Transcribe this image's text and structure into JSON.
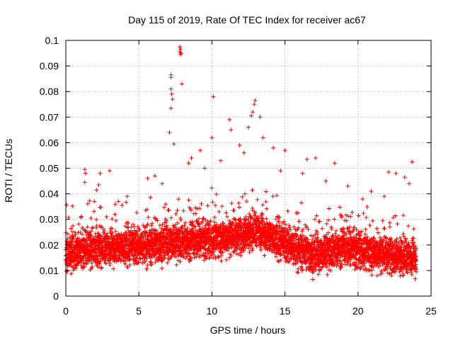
{
  "chart_data": {
    "type": "scatter",
    "title": "Day 115 of 2019, Rate Of TEC Index for receiver ac67",
    "xlabel": "GPS time / hours",
    "ylabel": "ROTI / TECUs",
    "xlim": [
      0,
      25
    ],
    "ylim": [
      0,
      0.1
    ],
    "grid": true,
    "marker": "+",
    "color": "#ff0000",
    "xticks": [
      0,
      5,
      10,
      15,
      20,
      25
    ],
    "yticks": [
      0,
      0.01,
      0.02,
      0.03,
      0.04,
      0.05,
      0.06,
      0.07,
      0.08,
      0.09,
      0.1
    ],
    "xtick_labels": [
      "0",
      "5",
      "10",
      "15",
      "20",
      "25"
    ],
    "ytick_labels": [
      "0",
      "0.01",
      "0.02",
      "0.03",
      "0.04",
      "0.05",
      "0.06",
      "0.07",
      "0.08",
      "0.09",
      "0.1"
    ],
    "series": [
      {
        "name": "ROTI",
        "bulk": {
          "x_range": [
            0,
            24
          ],
          "step_hours": 0.015,
          "baseline": [
            [
              0.0,
              0.0165
            ],
            [
              2.0,
              0.019
            ],
            [
              5.0,
              0.019
            ],
            [
              7.0,
              0.021
            ],
            [
              10.0,
              0.022
            ],
            [
              12.0,
              0.024
            ],
            [
              13.0,
              0.026
            ],
            [
              15.0,
              0.02
            ],
            [
              17.0,
              0.016
            ],
            [
              19.0,
              0.019
            ],
            [
              21.0,
              0.017
            ],
            [
              24.0,
              0.015
            ]
          ],
          "spread": 0.008,
          "min_value": 0.003
        },
        "outliers": [
          [
            7.8,
            0.0975
          ],
          [
            7.85,
            0.0965
          ],
          [
            7.8,
            0.0955
          ],
          [
            7.9,
            0.095
          ],
          [
            7.85,
            0.0945
          ],
          [
            7.2,
            0.0865
          ],
          [
            7.2,
            0.0855
          ],
          [
            7.2,
            0.081
          ],
          [
            7.25,
            0.079
          ],
          [
            7.3,
            0.077
          ],
          [
            7.2,
            0.0735
          ],
          [
            7.95,
            0.083
          ],
          [
            10.1,
            0.078
          ],
          [
            12.95,
            0.0765
          ],
          [
            12.9,
            0.075
          ],
          [
            12.8,
            0.072
          ],
          [
            12.7,
            0.0705
          ],
          [
            13.3,
            0.07
          ],
          [
            11.2,
            0.069
          ],
          [
            7.1,
            0.064
          ],
          [
            7.4,
            0.0595
          ],
          [
            9.2,
            0.057
          ],
          [
            10.0,
            0.062
          ],
          [
            11.3,
            0.065
          ],
          [
            12.5,
            0.066
          ],
          [
            13.5,
            0.062
          ],
          [
            14.2,
            0.058
          ],
          [
            15.0,
            0.057
          ],
          [
            16.5,
            0.0535
          ],
          [
            17.1,
            0.054
          ],
          [
            18.4,
            0.052
          ],
          [
            22.1,
            0.0485
          ],
          [
            22.6,
            0.048
          ],
          [
            23.2,
            0.0465
          ],
          [
            23.7,
            0.0525
          ],
          [
            1.3,
            0.0495
          ],
          [
            1.35,
            0.048
          ],
          [
            1.3,
            0.0445
          ],
          [
            2.35,
            0.048
          ],
          [
            3.0,
            0.049
          ],
          [
            2.25,
            0.0435
          ],
          [
            2.1,
            0.0415
          ],
          [
            3.6,
            0.037
          ],
          [
            4.2,
            0.039
          ],
          [
            5.6,
            0.046
          ],
          [
            6.1,
            0.047
          ],
          [
            6.6,
            0.044
          ],
          [
            8.6,
            0.054
          ],
          [
            8.4,
            0.052
          ],
          [
            9.5,
            0.05
          ],
          [
            10.6,
            0.053
          ],
          [
            11.9,
            0.059
          ],
          [
            12.2,
            0.056
          ],
          [
            14.7,
            0.049
          ],
          [
            16.2,
            0.048
          ],
          [
            17.8,
            0.045
          ],
          [
            19.3,
            0.043
          ],
          [
            20.9,
            0.041
          ],
          [
            21.8,
            0.039
          ],
          [
            23.5,
            0.044
          ]
        ]
      }
    ]
  }
}
